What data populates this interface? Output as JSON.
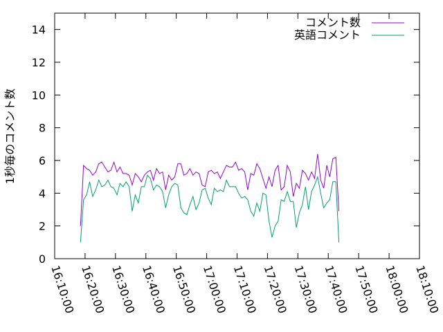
{
  "chart_data": {
    "type": "line",
    "title": "",
    "xlabel": "",
    "ylabel": "1秒毎のコメント数",
    "ylim": [
      0,
      15
    ],
    "y_ticks": [
      0,
      2,
      4,
      6,
      8,
      10,
      12,
      14
    ],
    "xlim": [
      "16:10:00",
      "18:10:00"
    ],
    "x_tick_labels": [
      "16:10:00",
      "16:20:00",
      "16:30:00",
      "16:40:00",
      "16:50:00",
      "17:00:00",
      "17:10:00",
      "17:20:00",
      "17:30:00",
      "17:40:00",
      "17:50:00",
      "18:00:00",
      "18:10:00"
    ],
    "grid": false,
    "legend_position": "top-right",
    "x_start": "16:18:30",
    "x_step_seconds": 60,
    "series": [
      {
        "name": "コメント数",
        "color": "#9400d3",
        "values": [
          2.0,
          5.7,
          5.5,
          5.4,
          5.1,
          5.3,
          5.8,
          5.9,
          5.6,
          5.3,
          5.4,
          5.9,
          5.3,
          5.6,
          5.2,
          5.2,
          5.1,
          4.5,
          5.2,
          5.0,
          4.7,
          5.1,
          5.3,
          5.4,
          4.8,
          5.5,
          5.2,
          5.3,
          4.2,
          5.1,
          4.8,
          5.0,
          5.8,
          5.8,
          5.1,
          5.2,
          5.5,
          5.1,
          5.3,
          5.2,
          4.5,
          4.4,
          5.3,
          5.4,
          5.2,
          5.3,
          4.9,
          5.3,
          5.7,
          5.6,
          5.6,
          5.9,
          5.4,
          5.5,
          5.3,
          4.2,
          5.2,
          5.1,
          5.8,
          5.5,
          4.9,
          4.3,
          5.0,
          4.4,
          5.4,
          5.7,
          4.2,
          4.4,
          5.7,
          5.3,
          3.8,
          4.6,
          4.3,
          5.4,
          5.2,
          4.8,
          5.3,
          4.9,
          6.4,
          4.8,
          4.3,
          5.7,
          5.0,
          6.1,
          6.2,
          2.9
        ]
      },
      {
        "name": "英語コメント",
        "color": "#009e73",
        "values": [
          1.0,
          3.6,
          3.9,
          4.7,
          3.8,
          4.2,
          4.8,
          4.4,
          4.5,
          4.8,
          4.4,
          4.3,
          3.9,
          4.6,
          4.4,
          4.7,
          4.4,
          2.9,
          3.9,
          3.4,
          4.4,
          4.4,
          5.1,
          4.9,
          4.2,
          4.5,
          4.4,
          4.1,
          3.1,
          3.9,
          4.4,
          4.6,
          4.5,
          3.1,
          2.8,
          2.7,
          3.3,
          3.8,
          3.0,
          3.4,
          4.2,
          4.3,
          3.7,
          3.3,
          4.3,
          4.1,
          4.2,
          4.1,
          4.8,
          4.4,
          4.4,
          4.4,
          4.0,
          3.7,
          3.8,
          3.6,
          2.9,
          2.6,
          3.4,
          2.9,
          4.0,
          3.9,
          2.3,
          1.3,
          2.0,
          2.3,
          3.6,
          3.5,
          4.1,
          3.5,
          3.5,
          1.9,
          2.8,
          3.3,
          4.4,
          3.0,
          4.1,
          4.5,
          5.0,
          4.0,
          3.1,
          3.4,
          3.6,
          4.7,
          4.7,
          1.0
        ]
      }
    ]
  }
}
